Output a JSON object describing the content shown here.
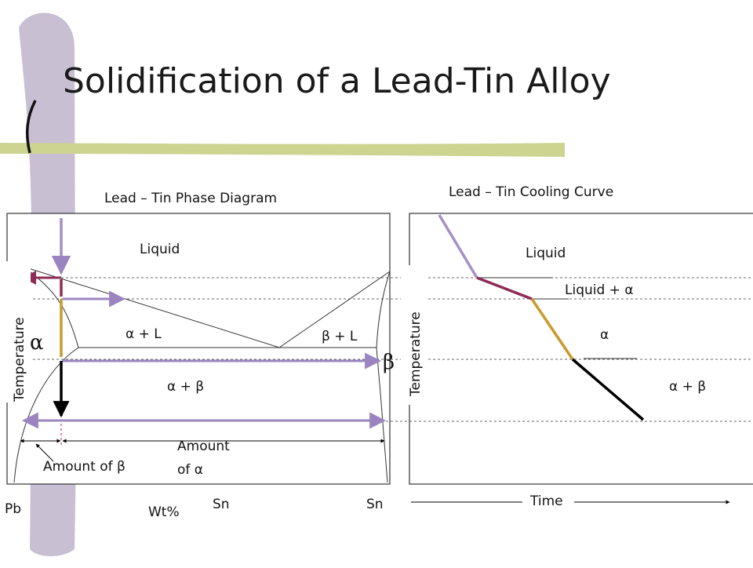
{
  "slide": {
    "title": "Solidification of a Lead-Tin Alloy"
  },
  "phase_diagram": {
    "title": "Lead – Tin Phase Diagram",
    "y_axis_label": "Temperature",
    "regions": {
      "liquid": "Liquid",
      "alpha": "α",
      "beta": "β",
      "alpha_plus_liquid": "α + L",
      "beta_plus_liquid": "β + L",
      "alpha_plus_beta": "α + β"
    },
    "annotations": {
      "amount_of_beta": "Amount of β",
      "amount_of_alpha_line1": "Amount",
      "amount_of_alpha_line2": "of α"
    },
    "x_axis": {
      "left_end": "Pb",
      "label": "Wt%",
      "mid_tick": "Sn",
      "right_end": "Sn"
    }
  },
  "cooling_curve": {
    "title": "Lead – Tin Cooling Curve",
    "y_axis_label": "Temperature",
    "x_axis_label": "Time",
    "stages": {
      "liquid": "Liquid",
      "liquid_plus_alpha": "Liquid + α",
      "alpha": "α",
      "alpha_plus_beta": "α + β"
    }
  },
  "colors": {
    "decor_green": "#ccd490",
    "decor_lavender": "#c8bfd2",
    "stage_liquid": "#a58fc4",
    "stage_liquid_alpha": "#8e2c55",
    "stage_alpha": "#c99a2a",
    "stage_alpha_beta": "#000000",
    "tie_line": "#9b85c0"
  }
}
